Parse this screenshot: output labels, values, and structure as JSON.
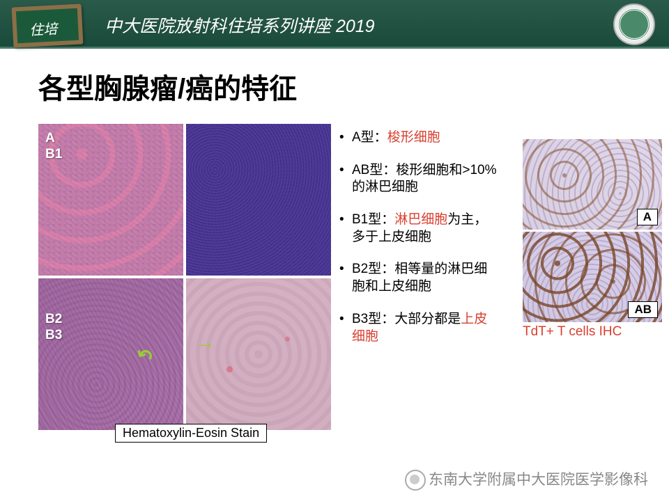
{
  "header": {
    "title": "中大医院放射科住培系列讲座 2019",
    "board": "住培"
  },
  "slide": {
    "title": "各型胸腺瘤/癌的特征"
  },
  "he": {
    "labels": {
      "top1": "A",
      "top2": "B1",
      "bot1": "B2",
      "bot2": "B3"
    },
    "caption": "Hematoxylin-Eosin Stain"
  },
  "bullets": {
    "a": {
      "prefix": "A型：",
      "hl": "梭形细胞"
    },
    "ab": {
      "text": "AB型：梭形细胞和>10%的淋巴细胞"
    },
    "b1": {
      "prefix": "B1型：",
      "hl": "淋巴细胞",
      "suffix": "为主，多于上皮细胞"
    },
    "b2": {
      "text": "B2型：相等量的淋巴细胞和上皮细胞"
    },
    "b3": {
      "prefix": "B3型：大部分都是",
      "hl": "上皮细胞"
    }
  },
  "ihc": {
    "tag_a": "A",
    "tag_ab": "AB",
    "caption": "TdT+ T cells IHC"
  },
  "watermark": "东南大学附属中大医院医学影像科"
}
